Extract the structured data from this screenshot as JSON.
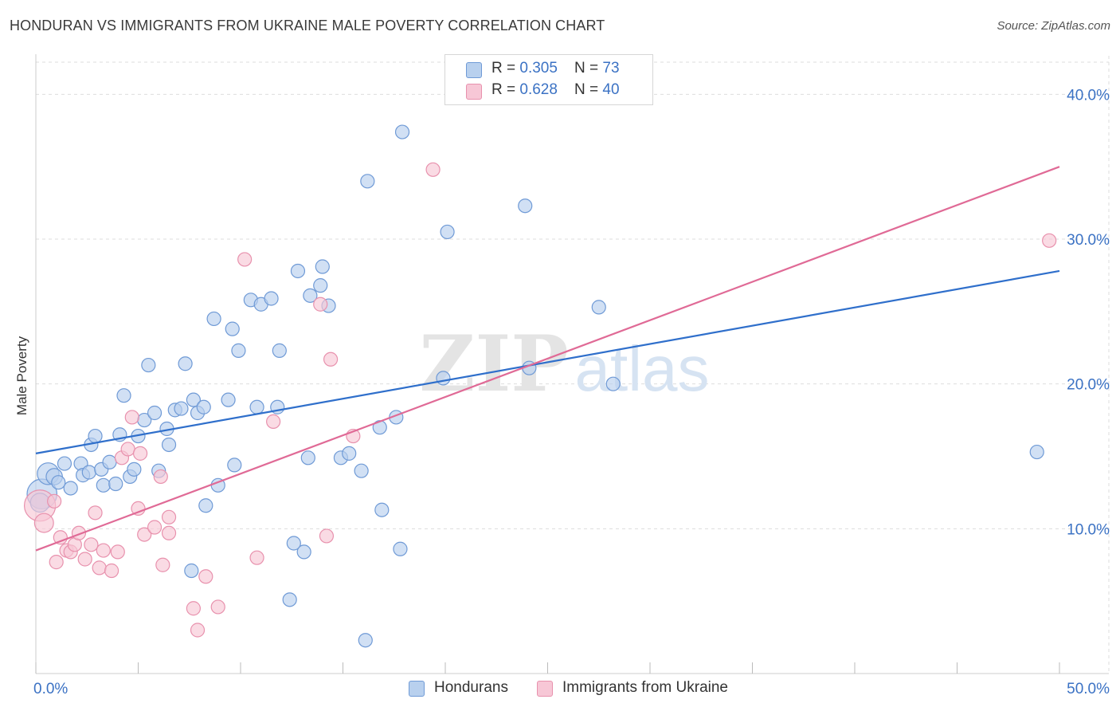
{
  "title": "HONDURAN VS IMMIGRANTS FROM UKRAINE MALE POVERTY CORRELATION CHART",
  "source": "Source: ZipAtlas.com",
  "watermark": {
    "zip": "ZIP",
    "atlas": "atlas"
  },
  "colors": {
    "blue_fill": "#b8d0ee",
    "blue_stroke": "#6f9ad6",
    "blue_line": "#2f6fcb",
    "pink_fill": "#f7c7d6",
    "pink_stroke": "#e891ad",
    "pink_line": "#e06a96",
    "axis_label": "#3b72c4",
    "grid": "#dddddd"
  },
  "legend": {
    "series1": {
      "r_label": "R = ",
      "r_value": "0.305",
      "n_label": "N = ",
      "n_value": "73"
    },
    "series2": {
      "r_label": "R = ",
      "r_value": "0.628",
      "n_label": "N = ",
      "n_value": "40"
    }
  },
  "chart_data": {
    "type": "scatter",
    "title": "HONDURAN VS IMMIGRANTS FROM UKRAINE MALE POVERTY CORRELATION CHART",
    "xlabel": "",
    "ylabel": "Male Poverty",
    "xlim": [
      0,
      50
    ],
    "ylim": [
      0,
      42
    ],
    "x_tick_labels": [
      "0.0%",
      "50.0%"
    ],
    "y_ticks": [
      10,
      20,
      30,
      40
    ],
    "y_tick_labels": [
      "10.0%",
      "20.0%",
      "30.0%",
      "40.0%"
    ],
    "grid": true,
    "legend_position": "top-center",
    "series": [
      {
        "name": "Hondurans",
        "color": "#b8d0ee",
        "trend": {
          "x": [
            0,
            50
          ],
          "y": [
            15.2,
            27.8
          ]
        },
        "points": [
          {
            "x": 0.3,
            "y": 12.4,
            "s": 2.2
          },
          {
            "x": 0.6,
            "y": 13.8,
            "s": 1.6
          },
          {
            "x": 0.9,
            "y": 13.6,
            "s": 1.2
          },
          {
            "x": 1.1,
            "y": 13.2,
            "s": 1
          },
          {
            "x": 1.4,
            "y": 14.5,
            "s": 1
          },
          {
            "x": 1.7,
            "y": 12.8,
            "s": 1
          },
          {
            "x": 2.2,
            "y": 14.5,
            "s": 1
          },
          {
            "x": 2.3,
            "y": 13.7,
            "s": 1
          },
          {
            "x": 2.6,
            "y": 13.9,
            "s": 1
          },
          {
            "x": 2.7,
            "y": 15.8,
            "s": 1
          },
          {
            "x": 2.9,
            "y": 16.4,
            "s": 1
          },
          {
            "x": 3.2,
            "y": 14.1,
            "s": 1
          },
          {
            "x": 3.3,
            "y": 13.0,
            "s": 1
          },
          {
            "x": 3.6,
            "y": 14.6,
            "s": 1
          },
          {
            "x": 3.9,
            "y": 13.1,
            "s": 1
          },
          {
            "x": 4.1,
            "y": 16.5,
            "s": 1
          },
          {
            "x": 4.3,
            "y": 19.2,
            "s": 1
          },
          {
            "x": 4.6,
            "y": 13.6,
            "s": 1
          },
          {
            "x": 4.8,
            "y": 14.1,
            "s": 1
          },
          {
            "x": 5.0,
            "y": 16.4,
            "s": 1
          },
          {
            "x": 5.3,
            "y": 17.5,
            "s": 1
          },
          {
            "x": 5.5,
            "y": 21.3,
            "s": 1
          },
          {
            "x": 5.8,
            "y": 18.0,
            "s": 1
          },
          {
            "x": 6.0,
            "y": 14.0,
            "s": 1
          },
          {
            "x": 6.4,
            "y": 16.9,
            "s": 1
          },
          {
            "x": 6.5,
            "y": 15.8,
            "s": 1
          },
          {
            "x": 6.8,
            "y": 18.2,
            "s": 1
          },
          {
            "x": 7.1,
            "y": 18.3,
            "s": 1
          },
          {
            "x": 7.3,
            "y": 21.4,
            "s": 1
          },
          {
            "x": 7.6,
            "y": 7.1,
            "s": 1
          },
          {
            "x": 7.7,
            "y": 18.9,
            "s": 1
          },
          {
            "x": 7.9,
            "y": 18.0,
            "s": 1
          },
          {
            "x": 8.2,
            "y": 18.4,
            "s": 1
          },
          {
            "x": 8.3,
            "y": 11.6,
            "s": 1
          },
          {
            "x": 8.7,
            "y": 24.5,
            "s": 1
          },
          {
            "x": 8.9,
            "y": 13.0,
            "s": 1
          },
          {
            "x": 9.4,
            "y": 18.9,
            "s": 1
          },
          {
            "x": 9.7,
            "y": 14.4,
            "s": 1
          },
          {
            "x": 9.6,
            "y": 23.8,
            "s": 1
          },
          {
            "x": 9.9,
            "y": 22.3,
            "s": 1
          },
          {
            "x": 10.5,
            "y": 25.8,
            "s": 1
          },
          {
            "x": 10.8,
            "y": 18.4,
            "s": 1
          },
          {
            "x": 11.0,
            "y": 25.5,
            "s": 1
          },
          {
            "x": 11.5,
            "y": 25.9,
            "s": 1
          },
          {
            "x": 11.8,
            "y": 18.4,
            "s": 1
          },
          {
            "x": 11.9,
            "y": 22.3,
            "s": 1
          },
          {
            "x": 12.4,
            "y": 5.1,
            "s": 1
          },
          {
            "x": 12.6,
            "y": 9.0,
            "s": 1
          },
          {
            "x": 12.8,
            "y": 27.8,
            "s": 1
          },
          {
            "x": 13.1,
            "y": 8.4,
            "s": 1
          },
          {
            "x": 13.3,
            "y": 14.9,
            "s": 1
          },
          {
            "x": 13.4,
            "y": 26.1,
            "s": 1
          },
          {
            "x": 13.9,
            "y": 26.8,
            "s": 1
          },
          {
            "x": 14.0,
            "y": 28.1,
            "s": 1
          },
          {
            "x": 14.3,
            "y": 25.4,
            "s": 1
          },
          {
            "x": 14.9,
            "y": 14.9,
            "s": 1
          },
          {
            "x": 15.3,
            "y": 15.2,
            "s": 1
          },
          {
            "x": 15.9,
            "y": 14.0,
            "s": 1
          },
          {
            "x": 16.1,
            "y": 2.3,
            "s": 1
          },
          {
            "x": 16.2,
            "y": 34.0,
            "s": 1
          },
          {
            "x": 16.8,
            "y": 17.0,
            "s": 1
          },
          {
            "x": 16.9,
            "y": 11.3,
            "s": 1
          },
          {
            "x": 17.6,
            "y": 17.7,
            "s": 1
          },
          {
            "x": 17.8,
            "y": 8.6,
            "s": 1
          },
          {
            "x": 17.9,
            "y": 37.4,
            "s": 1
          },
          {
            "x": 19.9,
            "y": 20.4,
            "s": 1
          },
          {
            "x": 20.1,
            "y": 30.5,
            "s": 1
          },
          {
            "x": 23.9,
            "y": 32.3,
            "s": 1
          },
          {
            "x": 24.1,
            "y": 21.1,
            "s": 1
          },
          {
            "x": 27.5,
            "y": 25.3,
            "s": 1
          },
          {
            "x": 28.2,
            "y": 20.0,
            "s": 1
          },
          {
            "x": 48.9,
            "y": 15.3,
            "s": 1
          },
          {
            "x": 0.2,
            "y": 11.8,
            "s": 1.4
          }
        ]
      },
      {
        "name": "Immigrants from Ukraine",
        "color": "#f7c7d6",
        "trend": {
          "x": [
            0,
            50
          ],
          "y": [
            8.5,
            35.0
          ]
        },
        "points": [
          {
            "x": 0.2,
            "y": 11.6,
            "s": 2.3
          },
          {
            "x": 0.4,
            "y": 10.4,
            "s": 1.4
          },
          {
            "x": 0.9,
            "y": 11.9,
            "s": 1
          },
          {
            "x": 1.0,
            "y": 7.7,
            "s": 1
          },
          {
            "x": 1.2,
            "y": 9.4,
            "s": 1
          },
          {
            "x": 1.5,
            "y": 8.5,
            "s": 1
          },
          {
            "x": 1.7,
            "y": 8.4,
            "s": 1
          },
          {
            "x": 1.9,
            "y": 8.9,
            "s": 1
          },
          {
            "x": 2.1,
            "y": 9.7,
            "s": 1
          },
          {
            "x": 2.4,
            "y": 7.9,
            "s": 1
          },
          {
            "x": 2.7,
            "y": 8.9,
            "s": 1
          },
          {
            "x": 2.9,
            "y": 11.1,
            "s": 1
          },
          {
            "x": 3.1,
            "y": 7.3,
            "s": 1
          },
          {
            "x": 3.3,
            "y": 8.5,
            "s": 1
          },
          {
            "x": 3.7,
            "y": 7.1,
            "s": 1
          },
          {
            "x": 4.0,
            "y": 8.4,
            "s": 1
          },
          {
            "x": 4.2,
            "y": 14.9,
            "s": 1
          },
          {
            "x": 4.5,
            "y": 15.5,
            "s": 1
          },
          {
            "x": 4.7,
            "y": 17.7,
            "s": 1
          },
          {
            "x": 5.0,
            "y": 11.4,
            "s": 1
          },
          {
            "x": 5.1,
            "y": 15.2,
            "s": 1
          },
          {
            "x": 5.3,
            "y": 9.6,
            "s": 1
          },
          {
            "x": 5.8,
            "y": 10.1,
            "s": 1
          },
          {
            "x": 6.1,
            "y": 13.6,
            "s": 1
          },
          {
            "x": 6.2,
            "y": 7.5,
            "s": 1
          },
          {
            "x": 6.5,
            "y": 10.8,
            "s": 1
          },
          {
            "x": 6.5,
            "y": 9.7,
            "s": 1
          },
          {
            "x": 7.7,
            "y": 4.5,
            "s": 1
          },
          {
            "x": 7.9,
            "y": 3.0,
            "s": 1
          },
          {
            "x": 8.3,
            "y": 6.7,
            "s": 1
          },
          {
            "x": 8.9,
            "y": 4.6,
            "s": 1
          },
          {
            "x": 10.2,
            "y": 28.6,
            "s": 1
          },
          {
            "x": 10.8,
            "y": 8.0,
            "s": 1
          },
          {
            "x": 11.6,
            "y": 17.4,
            "s": 1
          },
          {
            "x": 13.9,
            "y": 25.5,
            "s": 1
          },
          {
            "x": 14.2,
            "y": 9.5,
            "s": 1
          },
          {
            "x": 14.4,
            "y": 21.7,
            "s": 1
          },
          {
            "x": 15.5,
            "y": 16.4,
            "s": 1
          },
          {
            "x": 19.4,
            "y": 34.8,
            "s": 1
          },
          {
            "x": 49.5,
            "y": 29.9,
            "s": 1
          }
        ]
      }
    ]
  }
}
